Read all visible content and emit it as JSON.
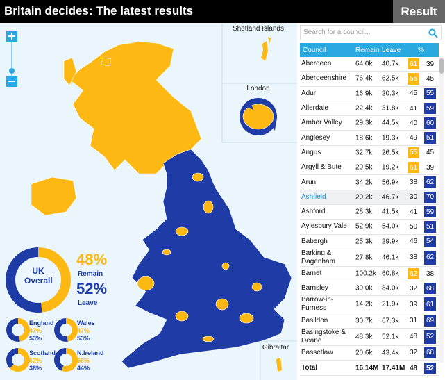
{
  "header": {
    "title": "Britain decides: The latest results",
    "button": "Result"
  },
  "search": {
    "placeholder": "Search for a council..."
  },
  "map": {
    "labels": {
      "shetland": "Shetland Islands",
      "london": "London",
      "gibraltar": "Gibraltar"
    }
  },
  "overall": {
    "label": "UK Overall",
    "remain": {
      "value": 48,
      "value_label": "48%",
      "name": "Remain"
    },
    "leave": {
      "value": 52,
      "value_label": "52%",
      "name": "Leave"
    }
  },
  "regions": [
    {
      "name": "England",
      "remain": 47,
      "remain_label": "47%",
      "leave": 53,
      "leave_label": "53%"
    },
    {
      "name": "Wales",
      "remain": 47,
      "remain_label": "47%",
      "leave": 53,
      "leave_label": "53%"
    },
    {
      "name": "Scotland",
      "remain": 62,
      "remain_label": "62%",
      "leave": 38,
      "leave_label": "38%"
    },
    {
      "name": "N.Ireland",
      "remain": 56,
      "remain_label": "56%",
      "leave": 44,
      "leave_label": "44%"
    }
  ],
  "colors": {
    "remain": "#fdb813",
    "leave": "#1f3ca6"
  },
  "table": {
    "columns": [
      "Council",
      "Remain",
      "Leave",
      "%"
    ],
    "selected_row": 9,
    "rows": [
      [
        "Aberdeen",
        "64.0k",
        "40.7k",
        61,
        39
      ],
      [
        "Aberdeenshire",
        "76.4k",
        "62.5k",
        55,
        45
      ],
      [
        "Adur",
        "16.9k",
        "20.3k",
        45,
        55
      ],
      [
        "Allerdale",
        "22.4k",
        "31.8k",
        41,
        59
      ],
      [
        "Amber Valley",
        "29.3k",
        "44.5k",
        40,
        60
      ],
      [
        "Anglesey",
        "18.6k",
        "19.3k",
        49,
        51
      ],
      [
        "Angus",
        "32.7k",
        "26.5k",
        55,
        45
      ],
      [
        "Argyll & Bute",
        "29.5k",
        "19.2k",
        61,
        39
      ],
      [
        "Arun",
        "34.2k",
        "56.9k",
        38,
        62
      ],
      [
        "Ashfield",
        "20.2k",
        "46.7k",
        30,
        70
      ],
      [
        "Ashford",
        "28.3k",
        "41.5k",
        41,
        59
      ],
      [
        "Aylesbury Vale",
        "52.9k",
        "54.0k",
        50,
        51
      ],
      [
        "Babergh",
        "25.3k",
        "29.9k",
        46,
        54
      ],
      [
        "Barking & Dagenham",
        "27.8k",
        "46.1k",
        38,
        62
      ],
      [
        "Barnet",
        "100.2k",
        "60.8k",
        62,
        38
      ],
      [
        "Barnsley",
        "39.0k",
        "84.0k",
        32,
        68
      ],
      [
        "Barrow-in-Furness",
        "14.2k",
        "21.9k",
        39,
        61
      ],
      [
        "Basildon",
        "30.7k",
        "67.3k",
        31,
        69
      ],
      [
        "Basingstoke & Deane",
        "48.3k",
        "52.1k",
        48,
        52
      ],
      [
        "Bassetlaw",
        "20.6k",
        "43.4k",
        32,
        68
      ]
    ],
    "total": [
      "Total",
      "16.14M",
      "17.41M",
      48,
      52
    ]
  }
}
